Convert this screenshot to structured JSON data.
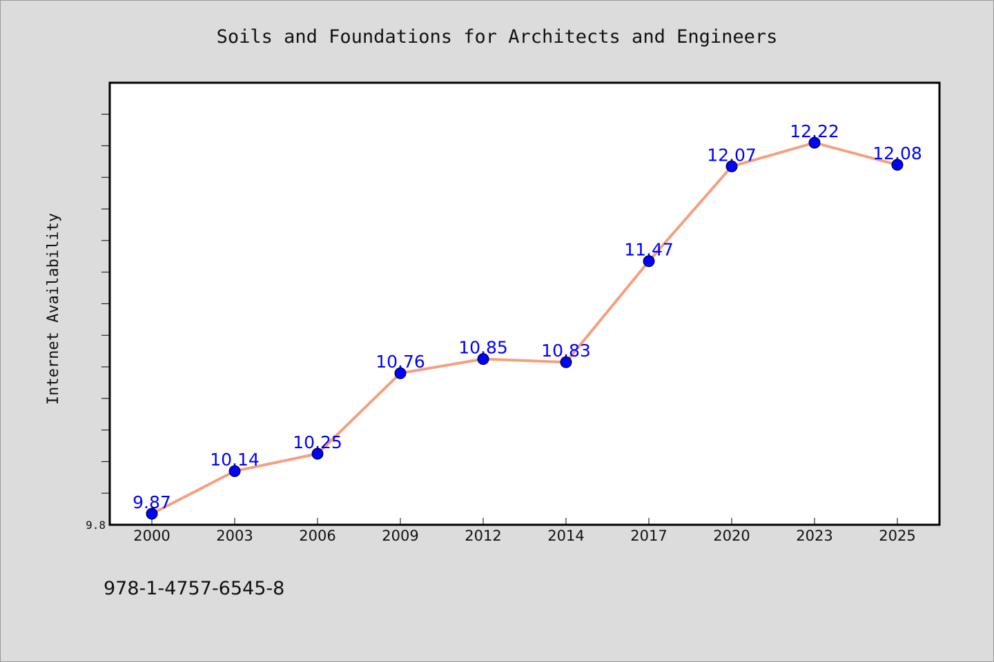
{
  "chart_data": {
    "type": "line",
    "title": "Soils and Foundations for Architects and Engineers",
    "ylabel": "Internet Availability",
    "xlabel": "",
    "categories": [
      "2000",
      "2003",
      "2006",
      "2009",
      "2012",
      "2014",
      "2017",
      "2020",
      "2023",
      "2025"
    ],
    "series": [
      {
        "values": [
          9.87,
          10.14,
          10.25,
          10.76,
          10.85,
          10.83,
          11.47,
          12.07,
          12.22,
          12.08
        ],
        "labels": [
          "9.87",
          "10.14",
          "10.25",
          "10.76",
          "10.85",
          "10.83",
          "11.47",
          "12.07",
          "12.22",
          "12.08"
        ]
      }
    ],
    "ylim": [
      9.8,
      12.6
    ],
    "yticks": [
      {
        "value": 9.8,
        "label": "9.8"
      }
    ],
    "grid": false,
    "line_color": "#f4a080",
    "marker_color": "#0000ff"
  },
  "footer": {
    "isbn": "978-1-4757-6545-8"
  }
}
